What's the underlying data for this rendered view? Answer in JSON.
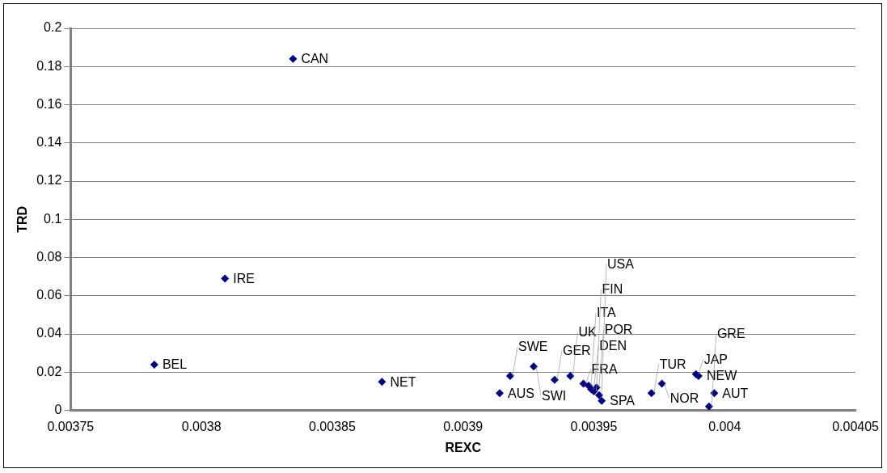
{
  "chart_data": {
    "type": "scatter",
    "xlabel": "REXC",
    "ylabel": "TRD",
    "x": [
      0.003835,
      0.003809,
      0.003782,
      0.003869,
      0.003914,
      0.003918,
      0.003927,
      0.003935,
      0.003941,
      0.003946,
      0.003948,
      0.003949,
      0.00395,
      0.003951,
      0.003952,
      0.003953,
      0.003972,
      0.003976,
      0.003989,
      0.00399,
      0.003996,
      0.003994
    ],
    "values": [
      0.184,
      0.069,
      0.024,
      0.015,
      0.009,
      0.018,
      0.023,
      0.016,
      0.018,
      0.014,
      0.013,
      0.011,
      0.01,
      0.012,
      0.008,
      0.005,
      0.009,
      0.014,
      0.019,
      0.018,
      0.009,
      0.002
    ],
    "color": "#000080",
    "marker": "diamond",
    "xlim": [
      0.00375,
      0.00405
    ],
    "xticks": [
      0.00375,
      0.0038,
      0.00385,
      0.0039,
      0.00395,
      0.004,
      0.00405
    ],
    "ylim": [
      0,
      0.2
    ],
    "yticks": [
      0,
      0.02,
      0.04,
      0.06,
      0.08,
      0.1,
      0.12,
      0.14,
      0.16,
      0.18,
      0.2
    ],
    "grid": "y",
    "annotations": [
      {
        "text": "CAN",
        "x": 0.003835,
        "y": 0.184
      },
      {
        "text": "IRE",
        "x": 0.003809,
        "y": 0.069
      },
      {
        "text": "BEL",
        "x": 0.003782,
        "y": 0.024
      },
      {
        "text": "NET",
        "x": 0.003869,
        "y": 0.015
      },
      {
        "text": "AUS",
        "x": 0.003914,
        "y": 0.009
      },
      {
        "text": "SWE",
        "x": 0.003918,
        "y": 0.018
      },
      {
        "text": "SWI",
        "x": 0.003927,
        "y": 0.023
      },
      {
        "text": "GER",
        "x": 0.003935,
        "y": 0.016
      },
      {
        "text": "UK",
        "x": 0.003941,
        "y": 0.018
      },
      {
        "text": "FRA",
        "x": 0.003946,
        "y": 0.014
      },
      {
        "text": "ITA",
        "x": 0.003948,
        "y": 0.013
      },
      {
        "text": "DEN",
        "x": 0.003949,
        "y": 0.011
      },
      {
        "text": "FIN",
        "x": 0.00395,
        "y": 0.01
      },
      {
        "text": "POR",
        "x": 0.003951,
        "y": 0.012
      },
      {
        "text": "USA",
        "x": 0.003952,
        "y": 0.008
      },
      {
        "text": "SPA",
        "x": 0.003953,
        "y": 0.005
      },
      {
        "text": "TUR",
        "x": 0.003972,
        "y": 0.009
      },
      {
        "text": "NOR",
        "x": 0.003976,
        "y": 0.014
      },
      {
        "text": "JAP",
        "x": 0.003989,
        "y": 0.019
      },
      {
        "text": "NEW",
        "x": 0.00399,
        "y": 0.018
      },
      {
        "text": "AUT",
        "x": 0.003996,
        "y": 0.009
      },
      {
        "text": "GRE",
        "x": 0.003994,
        "y": 0.002
      }
    ]
  }
}
